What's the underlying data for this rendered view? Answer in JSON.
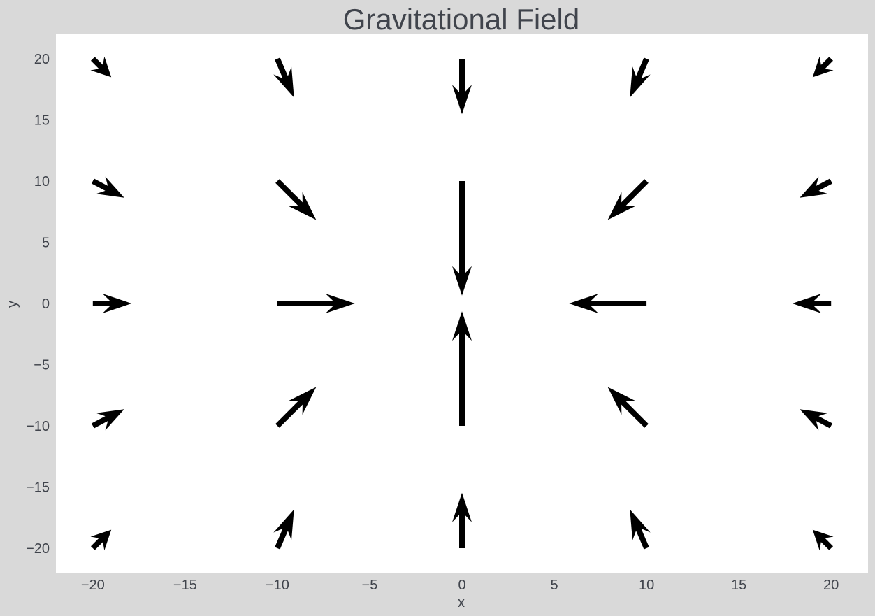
{
  "chart_data": {
    "type": "quiver",
    "title": "Gravitational Field",
    "xlabel": "x",
    "ylabel": "y",
    "xlim": [
      -22,
      22
    ],
    "ylim": [
      -22,
      22
    ],
    "x_ticks": [
      -20,
      -15,
      -10,
      -5,
      0,
      5,
      10,
      15,
      20
    ],
    "y_ticks": [
      -20,
      -15,
      -10,
      -5,
      0,
      5,
      10,
      15,
      20
    ],
    "x_tick_labels": [
      "−20",
      "−15",
      "−10",
      "−5",
      "0",
      "5",
      "10",
      "15",
      "20"
    ],
    "y_tick_labels": [
      "−20",
      "−15",
      "−10",
      "−5",
      "0",
      "5",
      "10",
      "15",
      "20"
    ],
    "grid": false,
    "arrow_color": "#000000",
    "plot_background": "#ffffff",
    "figure_background": "#d9d9d9",
    "vectors": [
      {
        "x": -20,
        "y": 20,
        "u": 1.0,
        "v": -1.0
      },
      {
        "x": -10,
        "y": 20,
        "u": 0.9,
        "v": -2.1
      },
      {
        "x": 0,
        "y": 20,
        "u": 0.0,
        "v": -3.0
      },
      {
        "x": 10,
        "y": 20,
        "u": -0.9,
        "v": -2.1
      },
      {
        "x": 20,
        "y": 20,
        "u": -1.0,
        "v": -1.0
      },
      {
        "x": -20,
        "y": 10,
        "u": 1.7,
        "v": -0.9
      },
      {
        "x": -10,
        "y": 10,
        "u": 2.1,
        "v": -2.1
      },
      {
        "x": 0,
        "y": 10,
        "u": 0.0,
        "v": -6.2
      },
      {
        "x": 10,
        "y": 10,
        "u": -2.1,
        "v": -2.1
      },
      {
        "x": 20,
        "y": 10,
        "u": -1.7,
        "v": -0.9
      },
      {
        "x": -20,
        "y": 0,
        "u": 2.1,
        "v": 0.0
      },
      {
        "x": -10,
        "y": 0,
        "u": 4.2,
        "v": 0.0
      },
      {
        "x": 10,
        "y": 0,
        "u": -4.2,
        "v": 0.0
      },
      {
        "x": 20,
        "y": 0,
        "u": -2.1,
        "v": 0.0
      },
      {
        "x": -20,
        "y": -10,
        "u": 1.7,
        "v": 0.9
      },
      {
        "x": -10,
        "y": -10,
        "u": 2.1,
        "v": 2.1
      },
      {
        "x": 0,
        "y": -10,
        "u": 0.0,
        "v": 6.2
      },
      {
        "x": 10,
        "y": -10,
        "u": -2.1,
        "v": 2.1
      },
      {
        "x": 20,
        "y": -10,
        "u": -1.7,
        "v": 0.9
      },
      {
        "x": -20,
        "y": -20,
        "u": 1.0,
        "v": 1.0
      },
      {
        "x": -10,
        "y": -20,
        "u": 0.9,
        "v": 2.1
      },
      {
        "x": 0,
        "y": -20,
        "u": 0.0,
        "v": 3.0
      },
      {
        "x": 10,
        "y": -20,
        "u": -0.9,
        "v": 2.1
      },
      {
        "x": 20,
        "y": -20,
        "u": -1.0,
        "v": 1.0
      }
    ]
  }
}
